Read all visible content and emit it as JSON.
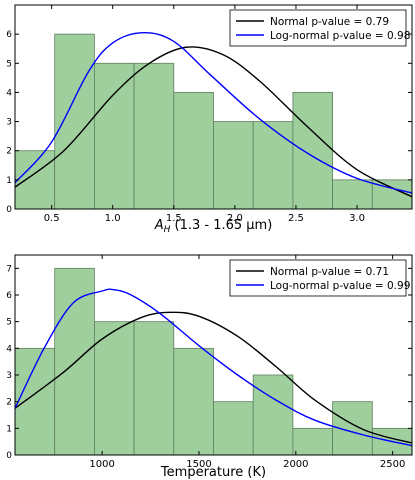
{
  "chart_data": [
    {
      "type": "bar",
      "subtype": "histogram-with-fitted-pdfs",
      "xlabel_main": "A",
      "xlabel_sub": "H",
      "xlabel_rest": " (1.3 - 1.65 μm)",
      "xlim": [
        0.2,
        3.45
      ],
      "ylim": [
        0,
        7
      ],
      "xticks": [
        0.5,
        1.0,
        1.5,
        2.0,
        2.5,
        3.0
      ],
      "xtick_labels": [
        "0.5",
        "1.0",
        "1.5",
        "2.0",
        "2.5",
        "3.0"
      ],
      "yticks": [
        0,
        1,
        2,
        3,
        4,
        5,
        6
      ],
      "ytick_labels": [
        "0",
        "1",
        "2",
        "3",
        "4",
        "5",
        "6"
      ],
      "bins": [
        {
          "x0": 0.2,
          "x1": 0.525,
          "count": 2
        },
        {
          "x0": 0.525,
          "x1": 0.85,
          "count": 6
        },
        {
          "x0": 0.85,
          "x1": 1.175,
          "count": 5
        },
        {
          "x0": 1.175,
          "x1": 1.5,
          "count": 5
        },
        {
          "x0": 1.5,
          "x1": 1.825,
          "count": 4
        },
        {
          "x0": 1.825,
          "x1": 2.15,
          "count": 3
        },
        {
          "x0": 2.15,
          "x1": 2.475,
          "count": 3
        },
        {
          "x0": 2.475,
          "x1": 2.8,
          "count": 4
        },
        {
          "x0": 2.8,
          "x1": 3.125,
          "count": 1
        },
        {
          "x0": 3.125,
          "x1": 3.45,
          "count": 1
        }
      ],
      "series": [
        {
          "name": "Normal p-value = 0.79",
          "x": [
            0.2,
            0.6,
            1.0,
            1.3,
            1.6,
            1.9,
            2.2,
            2.6,
            3.0,
            3.45
          ],
          "y": [
            0.75,
            2.0,
            3.9,
            5.0,
            5.55,
            5.3,
            4.4,
            2.8,
            1.35,
            0.42
          ]
        },
        {
          "name": "Log-normal p-value = 0.98",
          "x": [
            0.2,
            0.5,
            0.8,
            1.0,
            1.25,
            1.5,
            1.8,
            2.2,
            2.6,
            3.0,
            3.45
          ],
          "y": [
            0.9,
            2.3,
            4.7,
            5.7,
            6.05,
            5.75,
            4.6,
            3.1,
            1.9,
            1.05,
            0.55
          ]
        }
      ],
      "legend_position": "top-right"
    },
    {
      "type": "bar",
      "subtype": "histogram-with-fitted-pdfs",
      "xlabel_main": "Temperature (K)",
      "xlabel_sub": "",
      "xlabel_rest": "",
      "xlim": [
        550,
        2600
      ],
      "ylim": [
        0,
        7.5
      ],
      "xticks": [
        1000,
        1500,
        2000,
        2500
      ],
      "xtick_labels": [
        "1000",
        "1500",
        "2000",
        "2500"
      ],
      "yticks": [
        0,
        1,
        2,
        3,
        4,
        5,
        6,
        7
      ],
      "ytick_labels": [
        "0",
        "1",
        "2",
        "3",
        "4",
        "5",
        "6",
        "7"
      ],
      "bins": [
        {
          "x0": 550,
          "x1": 755,
          "count": 4
        },
        {
          "x0": 755,
          "x1": 960,
          "count": 7
        },
        {
          "x0": 960,
          "x1": 1165,
          "count": 5
        },
        {
          "x0": 1165,
          "x1": 1370,
          "count": 5
        },
        {
          "x0": 1370,
          "x1": 1575,
          "count": 4
        },
        {
          "x0": 1575,
          "x1": 1780,
          "count": 2
        },
        {
          "x0": 1780,
          "x1": 1985,
          "count": 3
        },
        {
          "x0": 1985,
          "x1": 2190,
          "count": 1
        },
        {
          "x0": 2190,
          "x1": 2395,
          "count": 2
        },
        {
          "x0": 2395,
          "x1": 2600,
          "count": 1
        }
      ],
      "series": [
        {
          "name": "Normal p-value = 0.71",
          "x": [
            550,
            800,
            1000,
            1200,
            1350,
            1500,
            1700,
            1900,
            2100,
            2350,
            2600
          ],
          "y": [
            1.75,
            3.1,
            4.35,
            5.15,
            5.35,
            5.2,
            4.45,
            3.3,
            2.05,
            0.95,
            0.45
          ]
        },
        {
          "name": "Log-normal p-value = 0.99",
          "x": [
            550,
            700,
            850,
            1000,
            1060,
            1150,
            1300,
            1500,
            1700,
            1900,
            2100,
            2350,
            2600
          ],
          "y": [
            1.75,
            4.0,
            5.7,
            6.15,
            6.2,
            6.0,
            5.3,
            4.1,
            3.0,
            2.05,
            1.3,
            0.75,
            0.35
          ]
        }
      ],
      "legend_position": "top-right"
    }
  ],
  "colors": {
    "bar_fill": "#a0cf9e",
    "bar_edge": "#5e7e5e",
    "normal_line": "#000000",
    "lognormal_line": "#0000ff"
  }
}
